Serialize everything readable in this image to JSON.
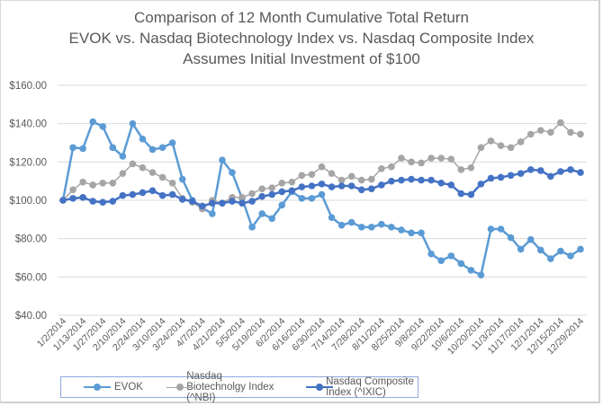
{
  "chart_data": {
    "type": "line",
    "title": [
      "Comparison of 12 Month Cumulative Total Return",
      "EVOK vs. Nasdaq Biotechnology Index vs. Nasdaq Composite Index",
      "Assumes Initial Investment of $100"
    ],
    "xlabel": "",
    "ylabel": "",
    "ylim": [
      40,
      160
    ],
    "yticks": [
      "$40.00",
      "$60.00",
      "$80.00",
      "$100.00",
      "$120.00",
      "$140.00",
      "$160.00"
    ],
    "ytick_values": [
      40,
      60,
      80,
      100,
      120,
      140,
      160
    ],
    "grid": true,
    "legend_position": "bottom",
    "xtick_labels": [
      "1/2/2014",
      "1/13/2014",
      "1/27/2014",
      "2/10/2014",
      "2/24/2014",
      "3/10/2014",
      "3/24/2014",
      "4/7/2014",
      "4/21/2014",
      "5/5/2014",
      "5/19/2014",
      "6/2/2014",
      "6/16/2014",
      "6/30/2014",
      "7/14/2014",
      "7/28/2014",
      "8/11/2014",
      "8/25/2014",
      "9/8/2014",
      "9/22/2014",
      "10/6/2014",
      "10/20/2014",
      "11/3/2014",
      "11/17/2014",
      "12/1/2014",
      "12/15/2014",
      "12/29/2014"
    ],
    "n_points": 53,
    "series": [
      {
        "name": "EVOK",
        "color": "#5b9bd5",
        "values": [
          100,
          127.5,
          127,
          141,
          138.5,
          127.5,
          123,
          140,
          132,
          126.5,
          127.5,
          130,
          111,
          100,
          96,
          93,
          121,
          114.5,
          101,
          86,
          93,
          90.5,
          97.5,
          104.5,
          101,
          101,
          103,
          91,
          87,
          88.5,
          86,
          86,
          87.5,
          86,
          84.5,
          83,
          83,
          72,
          68.5,
          71,
          67,
          63.5,
          61,
          85,
          85,
          80.5,
          74.5,
          79.5,
          74,
          69.5,
          73.5,
          71,
          74.5
        ]
      },
      {
        "name": "Nasdaq Biotechnolgy Index (^NBI)",
        "color": "#a5a5a5",
        "values": [
          100,
          105.5,
          109.5,
          108,
          109,
          109,
          114,
          119,
          117,
          114.5,
          112,
          109,
          101,
          99,
          95.5,
          100,
          98.5,
          101.5,
          101.5,
          103.5,
          106,
          106.5,
          109,
          109.5,
          113,
          113.5,
          117.5,
          114,
          110.5,
          112.5,
          110.5,
          111,
          116.5,
          117.5,
          122,
          120,
          119.5,
          122,
          122,
          121.5,
          116,
          117,
          127.5,
          131,
          128.5,
          127.5,
          130.5,
          134.5,
          136.5,
          135.5,
          140.5,
          135.5,
          134.5
        ]
      },
      {
        "name": "Nasdaq Composite Index (^IXIC)",
        "color": "#4472c4",
        "values": [
          100,
          101,
          101.5,
          99.5,
          99,
          99.5,
          102.5,
          103,
          104,
          105,
          102.5,
          103,
          100.5,
          99.5,
          97,
          98.5,
          98.5,
          99.5,
          98.5,
          99.5,
          102,
          103,
          104.5,
          105,
          107,
          107.5,
          108.5,
          107,
          107.5,
          107.5,
          105.5,
          106,
          108,
          110,
          110.5,
          111,
          110.5,
          110.5,
          109,
          108,
          103.5,
          103,
          108.5,
          111.5,
          112,
          113,
          114,
          116,
          115.5,
          112.5,
          115,
          116,
          114.5
        ]
      }
    ]
  },
  "legend": {
    "items": [
      "EVOK",
      "Nasdaq Biotechnolgy Index (^NBI)",
      "Nasdaq Composite Index (^IXIC)"
    ]
  }
}
